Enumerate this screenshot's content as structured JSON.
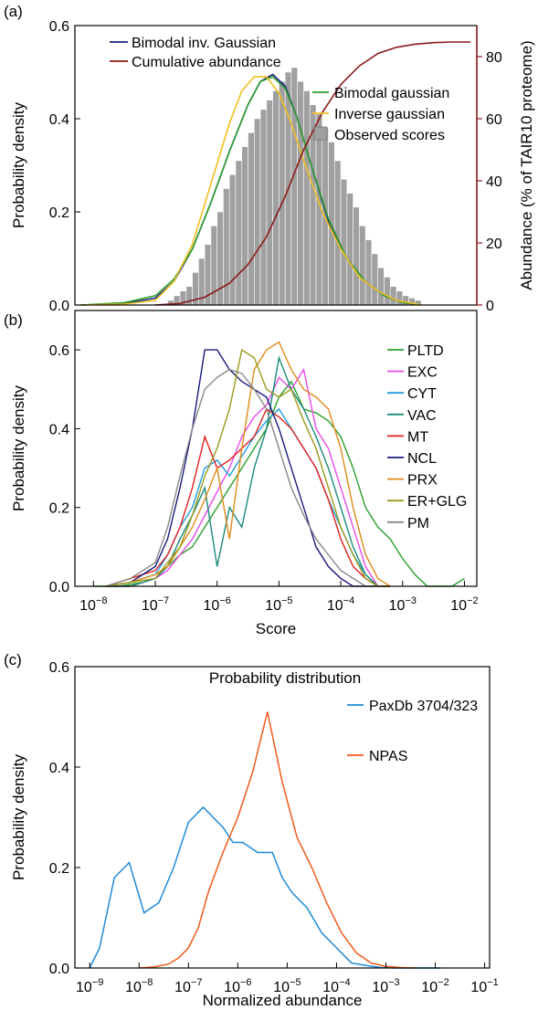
{
  "chart_data": [
    {
      "panel": "(a)",
      "type": "bar",
      "ylabel": "Probability density",
      "y2label": "Abundance (% of TAIR10 proteome)",
      "y2label_color": "#8b1a1a",
      "ylim": [
        0,
        0.6
      ],
      "y2lim": [
        0,
        90
      ],
      "xscale": "log10",
      "xlim_exp": [
        -8.3,
        -1.8
      ],
      "yticks": [
        "0.0",
        "0.2",
        "0.4",
        "0.6"
      ],
      "y2ticks": [
        "0",
        "20",
        "40",
        "60",
        "80"
      ],
      "bin_exp_start": -6.8,
      "bin_exp_width": 0.1,
      "hist_values": [
        0.01,
        0.02,
        0.03,
        0.04,
        0.07,
        0.1,
        0.13,
        0.17,
        0.2,
        0.25,
        0.28,
        0.31,
        0.34,
        0.37,
        0.4,
        0.42,
        0.44,
        0.46,
        0.48,
        0.5,
        0.51,
        0.48,
        0.46,
        0.43,
        0.41,
        0.38,
        0.35,
        0.31,
        0.27,
        0.24,
        0.21,
        0.17,
        0.14,
        0.11,
        0.08,
        0.06,
        0.04,
        0.03,
        0.02,
        0.015,
        0.01
      ],
      "legend_top_left": [
        {
          "label": "Bimodal inv. Gaussian",
          "color": "#1a237e",
          "kind": "line"
        },
        {
          "label": "Cumulative abundance",
          "color": "#8b1a1a",
          "kind": "line"
        }
      ],
      "legend_right": [
        {
          "label": "Bimodal gaussian",
          "color": "#2e9e2e",
          "kind": "line"
        },
        {
          "label": "Inverse gaussian",
          "color": "#f0c020",
          "kind": "line"
        },
        {
          "label": "Observed scores",
          "color": "#a0a0a0",
          "kind": "box"
        }
      ],
      "series": [
        {
          "name": "Bimodal inv. Gaussian",
          "color": "#1a237e",
          "axis": "y",
          "x": [
            -8.2,
            -7.5,
            -7.0,
            -6.7,
            -6.4,
            -6.1,
            -5.8,
            -5.5,
            -5.3,
            -5.1,
            -4.9,
            -4.7,
            -4.5,
            -4.2,
            -3.9,
            -3.6,
            -3.3,
            -3.0,
            -2.7
          ],
          "y": [
            0.0,
            0.003,
            0.015,
            0.05,
            0.12,
            0.22,
            0.33,
            0.43,
            0.48,
            0.495,
            0.47,
            0.4,
            0.31,
            0.18,
            0.1,
            0.05,
            0.02,
            0.005,
            0.0
          ]
        },
        {
          "name": "Bimodal gaussian",
          "color": "#2e9e2e",
          "axis": "y",
          "x": [
            -8.2,
            -7.5,
            -7.0,
            -6.7,
            -6.4,
            -6.1,
            -5.8,
            -5.5,
            -5.3,
            -5.1,
            -4.9,
            -4.7,
            -4.5,
            -4.2,
            -3.9,
            -3.6,
            -3.3,
            -3.0,
            -2.7
          ],
          "y": [
            0.0,
            0.005,
            0.02,
            0.055,
            0.12,
            0.22,
            0.33,
            0.43,
            0.48,
            0.49,
            0.465,
            0.4,
            0.31,
            0.185,
            0.1,
            0.05,
            0.02,
            0.005,
            0.0
          ]
        },
        {
          "name": "Inverse gaussian",
          "color": "#f0c020",
          "axis": "y",
          "x": [
            -8.2,
            -7.5,
            -7.0,
            -6.7,
            -6.4,
            -6.1,
            -5.8,
            -5.6,
            -5.4,
            -5.2,
            -5.0,
            -4.8,
            -4.6,
            -4.3,
            -4.0,
            -3.7,
            -3.4,
            -3.1,
            -2.7
          ],
          "y": [
            0.0,
            0.002,
            0.01,
            0.05,
            0.13,
            0.26,
            0.39,
            0.46,
            0.49,
            0.49,
            0.455,
            0.39,
            0.31,
            0.2,
            0.12,
            0.06,
            0.03,
            0.01,
            0.0
          ]
        },
        {
          "name": "Cumulative abundance",
          "color": "#8b1a1a",
          "axis": "y2",
          "x": [
            -7.0,
            -6.6,
            -6.2,
            -5.8,
            -5.5,
            -5.2,
            -4.9,
            -4.6,
            -4.3,
            -4.0,
            -3.7,
            -3.4,
            -3.1,
            -2.8,
            -2.5,
            -2.2,
            -1.9
          ],
          "y": [
            0.0,
            0.5,
            2.5,
            7.0,
            13.0,
            22.0,
            35.0,
            50.0,
            62.0,
            71.0,
            77.0,
            81.0,
            83.0,
            84.0,
            84.5,
            84.7,
            84.7
          ]
        }
      ]
    },
    {
      "panel": "(b)",
      "type": "line",
      "xlabel": "Score",
      "ylabel": "Probability density",
      "ylim": [
        0,
        0.7
      ],
      "xscale": "log10",
      "xlim_exp": [
        -8.3,
        -1.8
      ],
      "yticks": [
        "0.0",
        "0.2",
        "0.4",
        "0.6"
      ],
      "xticks": [
        "10<sup>−8</sup>"
      ],
      "x_tick_exponents": [
        "−8",
        "−7",
        "−6",
        "−5",
        "−4",
        "−3",
        "−2"
      ],
      "x_tick_base": "10",
      "series": [
        {
          "name": "PLTD",
          "color": "#2ca02c",
          "x": [
            -8.0,
            -7.6,
            -7.2,
            -7.0,
            -6.8,
            -6.6,
            -6.4,
            -6.2,
            -6.0,
            -5.8,
            -5.6,
            -5.4,
            -5.2,
            -5.0,
            -4.8,
            -4.6,
            -4.4,
            -4.2,
            -4.0,
            -3.8,
            -3.6,
            -3.4,
            -3.2,
            -3.0,
            -2.8,
            -2.6,
            -2.4,
            -2.2,
            -2.0
          ],
          "y": [
            0.0,
            0.0,
            0.01,
            0.02,
            0.05,
            0.08,
            0.1,
            0.15,
            0.2,
            0.25,
            0.3,
            0.35,
            0.4,
            0.48,
            0.52,
            0.45,
            0.44,
            0.42,
            0.38,
            0.3,
            0.2,
            0.15,
            0.12,
            0.07,
            0.03,
            0.0,
            0.0,
            0.0,
            0.02
          ]
        },
        {
          "name": "EXC",
          "color": "#e64ce6",
          "x": [
            -7.8,
            -7.4,
            -7.0,
            -6.8,
            -6.6,
            -6.4,
            -6.2,
            -6.0,
            -5.8,
            -5.6,
            -5.4,
            -5.2,
            -5.0,
            -4.8,
            -4.6,
            -4.4,
            -4.2,
            -4.0,
            -3.8,
            -3.6,
            -3.4,
            -3.2
          ],
          "y": [
            0.0,
            0.0,
            0.02,
            0.04,
            0.08,
            0.12,
            0.18,
            0.24,
            0.3,
            0.38,
            0.43,
            0.46,
            0.53,
            0.5,
            0.55,
            0.4,
            0.35,
            0.25,
            0.15,
            0.05,
            0.0,
            0.0
          ]
        },
        {
          "name": "CYT",
          "color": "#1f9ddb",
          "x": [
            -7.8,
            -7.4,
            -7.0,
            -6.8,
            -6.6,
            -6.4,
            -6.2,
            -6.0,
            -5.8,
            -5.6,
            -5.4,
            -5.2,
            -5.0,
            -4.8,
            -4.6,
            -4.4,
            -4.2,
            -4.0,
            -3.8,
            -3.6,
            -3.4,
            -3.2
          ],
          "y": [
            0.0,
            0.01,
            0.03,
            0.08,
            0.15,
            0.2,
            0.3,
            0.32,
            0.28,
            0.33,
            0.38,
            0.42,
            0.45,
            0.4,
            0.35,
            0.3,
            0.22,
            0.15,
            0.08,
            0.03,
            0.0,
            0.0
          ]
        },
        {
          "name": "VAC",
          "color": "#1b8a7a",
          "x": [
            -7.8,
            -7.4,
            -7.0,
            -6.8,
            -6.6,
            -6.4,
            -6.2,
            -6.0,
            -5.8,
            -5.6,
            -5.4,
            -5.2,
            -5.0,
            -4.8,
            -4.6,
            -4.4,
            -4.2,
            -4.0,
            -3.8,
            -3.6,
            -3.4,
            -3.2
          ],
          "y": [
            0.0,
            0.0,
            0.02,
            0.05,
            0.12,
            0.18,
            0.25,
            0.05,
            0.2,
            0.15,
            0.3,
            0.4,
            0.58,
            0.5,
            0.45,
            0.38,
            0.3,
            0.2,
            0.1,
            0.03,
            0.0,
            0.0
          ]
        },
        {
          "name": "MT",
          "color": "#e02020",
          "x": [
            -7.8,
            -7.4,
            -7.0,
            -6.8,
            -6.6,
            -6.4,
            -6.2,
            -6.0,
            -5.8,
            -5.6,
            -5.4,
            -5.2,
            -5.0,
            -4.8,
            -4.6,
            -4.4,
            -4.2,
            -4.0,
            -3.8,
            -3.6,
            -3.4,
            -3.2
          ],
          "y": [
            0.0,
            0.02,
            0.04,
            0.08,
            0.15,
            0.25,
            0.38,
            0.3,
            0.32,
            0.35,
            0.38,
            0.45,
            0.43,
            0.4,
            0.35,
            0.3,
            0.22,
            0.12,
            0.05,
            0.02,
            0.0,
            0.0
          ]
        },
        {
          "name": "NCL",
          "color": "#1a1a7e",
          "x": [
            -7.8,
            -7.4,
            -7.0,
            -6.8,
            -6.6,
            -6.4,
            -6.2,
            -6.0,
            -5.8,
            -5.6,
            -5.4,
            -5.2,
            -5.0,
            -4.8,
            -4.6,
            -4.4,
            -4.2,
            -4.0,
            -3.8,
            -3.6,
            -3.4
          ],
          "y": [
            0.0,
            0.01,
            0.05,
            0.12,
            0.25,
            0.4,
            0.6,
            0.6,
            0.55,
            0.52,
            0.5,
            0.48,
            0.4,
            0.3,
            0.2,
            0.1,
            0.05,
            0.02,
            0.0,
            0.0,
            0.0
          ]
        },
        {
          "name": "PRX",
          "color": "#e08a1a",
          "x": [
            -7.8,
            -7.4,
            -7.0,
            -6.8,
            -6.6,
            -6.4,
            -6.2,
            -6.0,
            -5.8,
            -5.6,
            -5.4,
            -5.2,
            -5.0,
            -4.8,
            -4.6,
            -4.4,
            -4.2,
            -4.0,
            -3.8,
            -3.6,
            -3.4,
            -3.2
          ],
          "y": [
            0.0,
            0.01,
            0.03,
            0.05,
            0.1,
            0.15,
            0.22,
            0.3,
            0.12,
            0.35,
            0.55,
            0.6,
            0.62,
            0.55,
            0.5,
            0.48,
            0.45,
            0.35,
            0.2,
            0.08,
            0.02,
            0.0
          ]
        },
        {
          "name": "ER+GLG",
          "color": "#9a9a1a",
          "x": [
            -7.8,
            -7.4,
            -7.0,
            -6.8,
            -6.6,
            -6.4,
            -6.2,
            -6.0,
            -5.8,
            -5.6,
            -5.4,
            -5.2,
            -5.0,
            -4.8,
            -4.6,
            -4.4,
            -4.2,
            -4.0,
            -3.8,
            -3.6,
            -3.4,
            -3.2
          ],
          "y": [
            0.0,
            0.01,
            0.02,
            0.06,
            0.1,
            0.18,
            0.28,
            0.35,
            0.45,
            0.6,
            0.58,
            0.5,
            0.48,
            0.5,
            0.42,
            0.35,
            0.25,
            0.15,
            0.08,
            0.02,
            0.0,
            0.0
          ]
        },
        {
          "name": "PM",
          "color": "#888888",
          "x": [
            -7.8,
            -7.4,
            -7.0,
            -6.8,
            -6.6,
            -6.4,
            -6.2,
            -6.0,
            -5.8,
            -5.6,
            -5.4,
            -5.2,
            -5.0,
            -4.8,
            -4.6,
            -4.4,
            -4.2,
            -4.0,
            -3.8,
            -3.6,
            -3.4
          ],
          "y": [
            0.0,
            0.02,
            0.06,
            0.15,
            0.28,
            0.4,
            0.5,
            0.53,
            0.55,
            0.54,
            0.5,
            0.45,
            0.35,
            0.25,
            0.18,
            0.12,
            0.08,
            0.04,
            0.02,
            0.0,
            0.0
          ]
        }
      ]
    },
    {
      "panel": "(c)",
      "type": "line",
      "title": "Probability distribution",
      "xlabel": "Normalized abundance",
      "ylabel": "Probability density",
      "ylim": [
        0,
        0.6
      ],
      "xscale": "log10",
      "xlim_exp": [
        -9.3,
        -0.9
      ],
      "yticks": [
        "0.0",
        "0.2",
        "0.4",
        "0.6"
      ],
      "x_tick_exponents": [
        "−9",
        "−8",
        "−7",
        "−6",
        "−5",
        "−4",
        "−3",
        "−2",
        "−1"
      ],
      "x_tick_base": "10",
      "series": [
        {
          "name": "PaxDb 3704/323",
          "color": "#1f8ad8",
          "x": [
            -9.0,
            -8.8,
            -8.5,
            -8.2,
            -7.9,
            -7.6,
            -7.3,
            -7.0,
            -6.7,
            -6.5,
            -6.3,
            -6.1,
            -5.9,
            -5.6,
            -5.3,
            -5.1,
            -4.9,
            -4.6,
            -4.3,
            -4.0,
            -3.7,
            -3.4,
            -3.1,
            -2.8,
            -2.5,
            -2.2,
            -1.9
          ],
          "y": [
            0.0,
            0.04,
            0.18,
            0.21,
            0.11,
            0.13,
            0.2,
            0.29,
            0.32,
            0.3,
            0.28,
            0.25,
            0.25,
            0.23,
            0.23,
            0.18,
            0.15,
            0.12,
            0.07,
            0.04,
            0.01,
            0.005,
            0.001,
            0.0,
            0.0,
            0.0,
            0.0
          ]
        },
        {
          "name": "NPAS",
          "color": "#f05a1a",
          "x": [
            -8.0,
            -7.7,
            -7.4,
            -7.2,
            -7.0,
            -6.8,
            -6.6,
            -6.3,
            -6.0,
            -5.7,
            -5.4,
            -5.1,
            -4.8,
            -4.5,
            -4.2,
            -3.9,
            -3.6,
            -3.3,
            -3.0,
            -2.7,
            -2.4
          ],
          "y": [
            0.0,
            0.002,
            0.008,
            0.02,
            0.04,
            0.08,
            0.15,
            0.23,
            0.3,
            0.39,
            0.51,
            0.37,
            0.26,
            0.2,
            0.13,
            0.07,
            0.03,
            0.01,
            0.003,
            0.001,
            0.0
          ]
        }
      ]
    }
  ],
  "labels": {
    "panel_a": "(a)",
    "panel_b": "(b)",
    "panel_c": "(c)"
  }
}
